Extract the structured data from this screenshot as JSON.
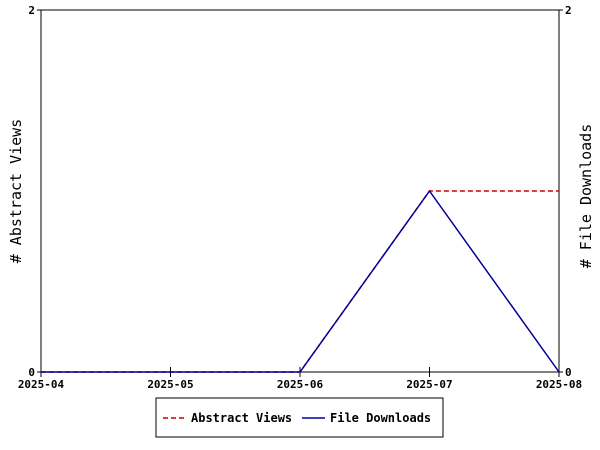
{
  "chart_data": {
    "type": "line",
    "categories": [
      "2025-04",
      "2025-05",
      "2025-06",
      "2025-07",
      "2025-08"
    ],
    "series": [
      {
        "name": "Abstract Views",
        "values": [
          0,
          0,
          0,
          1,
          1
        ],
        "color": "#cc0000",
        "style": "dashed"
      },
      {
        "name": "File Downloads",
        "values": [
          0,
          0,
          0,
          1,
          0
        ],
        "color": "#000099",
        "style": "solid"
      }
    ],
    "ylabel": "# Abstract Views",
    "y2label": "# File Downloads",
    "ylim": [
      0,
      2
    ],
    "y2lim": [
      0,
      2
    ],
    "yticks": [
      "0",
      "2"
    ],
    "y2ticks": [
      "0",
      "2"
    ],
    "grid": false,
    "legend": "bottom-center"
  }
}
